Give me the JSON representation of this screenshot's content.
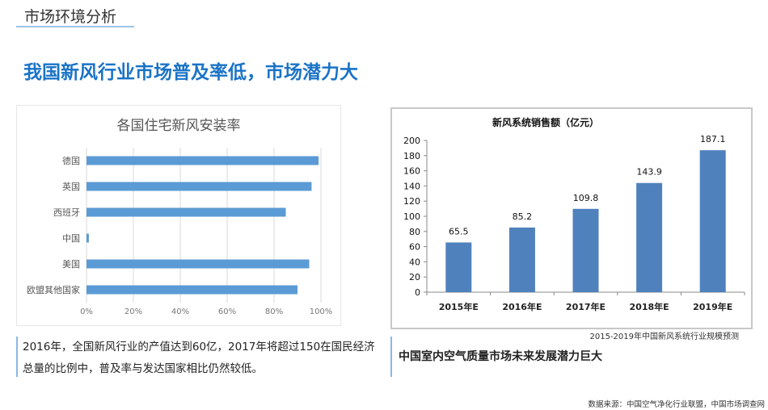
{
  "header": {
    "section_title": "市场环境分析",
    "headline": "我国新风行业市场普及率低，市场潜力大"
  },
  "chart_data": [
    {
      "type": "bar",
      "orientation": "horizontal",
      "title": "各国住宅新风安装率",
      "categories": [
        "德国",
        "英国",
        "西班牙",
        "中国",
        "美国",
        "欧盟其他国家"
      ],
      "values": [
        99,
        96,
        85,
        1,
        95,
        90
      ],
      "unit": "%",
      "xlim": [
        0,
        100
      ],
      "xticks": [
        "0%",
        "20%",
        "40%",
        "60%",
        "80%",
        "100%"
      ],
      "grid": true,
      "color": "#5b9bd5"
    },
    {
      "type": "bar",
      "title": "新风系统销售额（亿元）",
      "categories": [
        "2015年E",
        "2016年E",
        "2017年E",
        "2018年E",
        "2019年E"
      ],
      "values": [
        65.5,
        85.2,
        109.8,
        143.9,
        187.1
      ],
      "data_labels": [
        "65.5",
        "85.2",
        "109.8",
        "143.9",
        "187.1"
      ],
      "ylim": [
        0,
        200
      ],
      "yticks": [
        "0",
        "20",
        "40",
        "60",
        "80",
        "100",
        "120",
        "140",
        "160",
        "180",
        "200"
      ],
      "grid": false,
      "color": "#4f81bd"
    }
  ],
  "captions": {
    "right_chart": "2015-2019年中国新风系统行业规模预测",
    "left_note_line1": "2016年，全国新风行业的产值达到60亿，2017年将超过150在国民经济",
    "left_note_line2": "总量的比例中，普及率与发达国家相比仍然较低。",
    "right_note": "中国室内空气质量市场未来发展潜力巨大",
    "source": "数据来源：中国空气净化行业联盟，中国市场调查网"
  }
}
